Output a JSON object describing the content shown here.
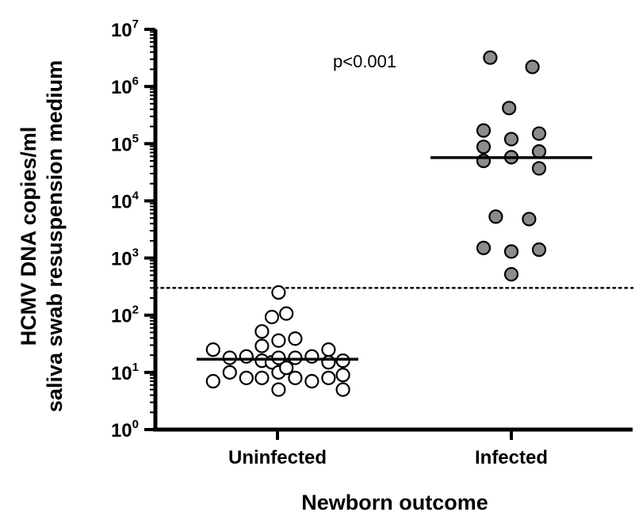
{
  "chart_data": {
    "type": "scatter",
    "xlabel": "Newborn outcome",
    "ylabel_lines": [
      "HCMV DNA copies/ml",
      "saliva swab resuspension medium"
    ],
    "y_scale": "log10",
    "ylim": [
      1,
      10000000
    ],
    "y_ticks": [
      {
        "base": "10",
        "exp": "0",
        "value": 1
      },
      {
        "base": "10",
        "exp": "1",
        "value": 10
      },
      {
        "base": "10",
        "exp": "2",
        "value": 100
      },
      {
        "base": "10",
        "exp": "3",
        "value": 1000
      },
      {
        "base": "10",
        "exp": "4",
        "value": 10000
      },
      {
        "base": "10",
        "exp": "5",
        "value": 100000
      },
      {
        "base": "10",
        "exp": "6",
        "value": 1000000
      },
      {
        "base": "10",
        "exp": "7",
        "value": 10000000
      }
    ],
    "categories": [
      "Uninfected",
      "Infected"
    ],
    "series": [
      {
        "category": "Uninfected",
        "fill": "#ffffff",
        "median": 17,
        "points": [
          [
            -0.58,
            25
          ],
          [
            -0.58,
            7
          ],
          [
            -0.43,
            18
          ],
          [
            -0.43,
            10
          ],
          [
            -0.28,
            19
          ],
          [
            -0.28,
            8
          ],
          [
            -0.14,
            52
          ],
          [
            -0.14,
            29
          ],
          [
            -0.14,
            16
          ],
          [
            -0.14,
            8
          ],
          [
            -0.05,
            93
          ],
          [
            -0.05,
            15
          ],
          [
            0.01,
            250
          ],
          [
            0.01,
            36
          ],
          [
            0.01,
            18
          ],
          [
            0.01,
            10
          ],
          [
            0.01,
            5
          ],
          [
            0.08,
            107
          ],
          [
            0.08,
            12
          ],
          [
            0.16,
            39
          ],
          [
            0.16,
            18
          ],
          [
            0.16,
            8
          ],
          [
            0.31,
            19
          ],
          [
            0.31,
            7
          ],
          [
            0.46,
            25
          ],
          [
            0.46,
            15
          ],
          [
            0.46,
            8
          ],
          [
            0.59,
            16
          ],
          [
            0.59,
            9
          ],
          [
            0.59,
            5
          ]
        ]
      },
      {
        "category": "Infected",
        "fill": "#8c8c8c",
        "median": 57000,
        "points": [
          [
            -0.19,
            3200000
          ],
          [
            0.19,
            2200000
          ],
          [
            -0.02,
            420000
          ],
          [
            -0.25,
            170000
          ],
          [
            0.0,
            120000
          ],
          [
            0.25,
            150000
          ],
          [
            -0.25,
            88000
          ],
          [
            0.25,
            73000
          ],
          [
            -0.25,
            50000
          ],
          [
            0.0,
            58000
          ],
          [
            0.25,
            37000
          ],
          [
            -0.14,
            5300
          ],
          [
            0.16,
            4800
          ],
          [
            -0.25,
            1500
          ],
          [
            0.0,
            1300
          ],
          [
            0.25,
            1400
          ],
          [
            0.0,
            520
          ]
        ]
      }
    ],
    "threshold": 300,
    "annotation": "p<0.001"
  }
}
